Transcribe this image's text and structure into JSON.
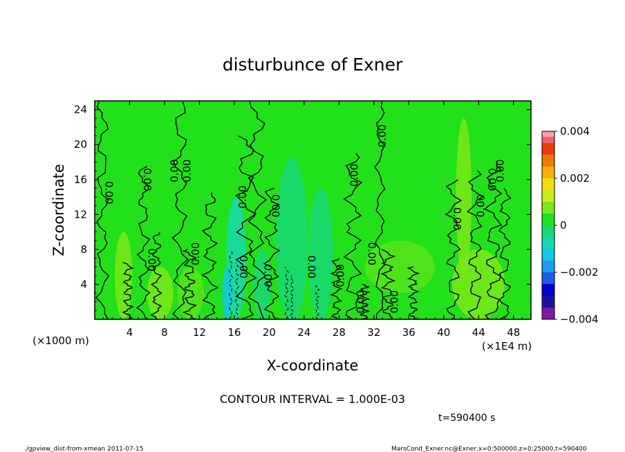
{
  "chart_data": {
    "type": "heatmap",
    "title": "disturbunce of Exner",
    "xlabel": "X-coordinate",
    "ylabel": "Z-coordinate",
    "x_unit_label": "(×1E4 m)",
    "y_unit_label": "(×1000 m)",
    "xlim": [
      0,
      50
    ],
    "ylim": [
      0,
      25
    ],
    "x_ticks": [
      4,
      8,
      12,
      16,
      20,
      24,
      28,
      32,
      36,
      40,
      44,
      48
    ],
    "y_ticks": [
      4,
      8,
      12,
      16,
      20,
      24
    ],
    "colorbar": {
      "min": -0.004,
      "max": 0.004,
      "tick_values": [
        0.004,
        0.002,
        0,
        -0.002,
        -0.004
      ],
      "tick_labels": [
        "0.004",
        "0.002",
        "0",
        "−0.002",
        "−0.004"
      ],
      "levels": [
        {
          "lo": -0.004,
          "hi": -0.0035,
          "color": "#7a1aa0"
        },
        {
          "lo": -0.0035,
          "hi": -0.003,
          "color": "#1f0fa0"
        },
        {
          "lo": -0.003,
          "hi": -0.0025,
          "color": "#0000d0"
        },
        {
          "lo": -0.0025,
          "hi": -0.002,
          "color": "#1f5be6"
        },
        {
          "lo": -0.002,
          "hi": -0.0015,
          "color": "#1e9bf0"
        },
        {
          "lo": -0.0015,
          "hi": -0.001,
          "color": "#10c8e8"
        },
        {
          "lo": -0.001,
          "hi": -0.0005,
          "color": "#16d8b0"
        },
        {
          "lo": -0.0005,
          "hi": 0,
          "color": "#18d878"
        },
        {
          "lo": 0,
          "hi": 0.0005,
          "color": "#22e01a"
        },
        {
          "lo": 0.0005,
          "hi": 0.001,
          "color": "#7be81a"
        },
        {
          "lo": 0.001,
          "hi": 0.0015,
          "color": "#c8ee18"
        },
        {
          "lo": 0.0015,
          "hi": 0.002,
          "color": "#f0e010"
        },
        {
          "lo": 0.002,
          "hi": 0.0025,
          "color": "#f5b00a"
        },
        {
          "lo": 0.0025,
          "hi": 0.003,
          "color": "#f07800"
        },
        {
          "lo": 0.003,
          "hi": 0.0035,
          "color": "#ee3a10"
        },
        {
          "lo": 0.0035,
          "hi": 0.004,
          "color": "#f06070"
        }
      ],
      "extra_top_color": "#f8a0a8"
    },
    "contour_labels": [
      {
        "x": 1.6,
        "z": 14.5,
        "text": "0.00",
        "rot": 90
      },
      {
        "x": 6.0,
        "z": 16.0,
        "text": "0.00",
        "rot": 90
      },
      {
        "x": 9.2,
        "z": 17.0,
        "text": "0.00",
        "rot": -90
      },
      {
        "x": 10.6,
        "z": 17.0,
        "text": "0.00",
        "rot": -90
      },
      {
        "x": 6.5,
        "z": 6.8,
        "text": "0.00",
        "rot": 90
      },
      {
        "x": 11.6,
        "z": 7.5,
        "text": "0.00",
        "rot": -90
      },
      {
        "x": 17.0,
        "z": 14.0,
        "text": "0.00",
        "rot": -90
      },
      {
        "x": 17.0,
        "z": 6.0,
        "text": "0.00",
        "rot": 90
      },
      {
        "x": 19.8,
        "z": 5.0,
        "text": "0.00",
        "rot": 90
      },
      {
        "x": 20.7,
        "z": 13.0,
        "text": "0.00",
        "rot": 90
      },
      {
        "x": 24.8,
        "z": 6.0,
        "text": "0.00",
        "rot": 90
      },
      {
        "x": 28.2,
        "z": 5.0,
        "text": "0.00",
        "rot": -90
      },
      {
        "x": 29.8,
        "z": 16.5,
        "text": "0.00",
        "rot": -90
      },
      {
        "x": 30.5,
        "z": 2.0,
        "text": "0.00",
        "rot": -90
      },
      {
        "x": 31.7,
        "z": 7.5,
        "text": "0.00",
        "rot": 90
      },
      {
        "x": 33.0,
        "z": 21.0,
        "text": "0.00",
        "rot": -90
      },
      {
        "x": 34.4,
        "z": 2.0,
        "text": "0.00",
        "rot": -90
      },
      {
        "x": 41.5,
        "z": 11.5,
        "text": "0.00",
        "rot": 90
      },
      {
        "x": 44.3,
        "z": 13.0,
        "text": "0.00",
        "rot": -90
      },
      {
        "x": 45.5,
        "z": 16.0,
        "text": "0.00",
        "rot": 90
      },
      {
        "x": 46.5,
        "z": 17.0,
        "text": "0.00",
        "rot": -90
      }
    ]
  },
  "contour_interval_text": "CONTOUR INTERVAL = 1.000E-03",
  "time_text": "t=590400 s",
  "footer_left": "./gpview_dist-from-xmean  2011-07-15",
  "footer_right": "MarsCond_Exner.nc@Exner,x=0:500000,z=0:25000,t=590400"
}
